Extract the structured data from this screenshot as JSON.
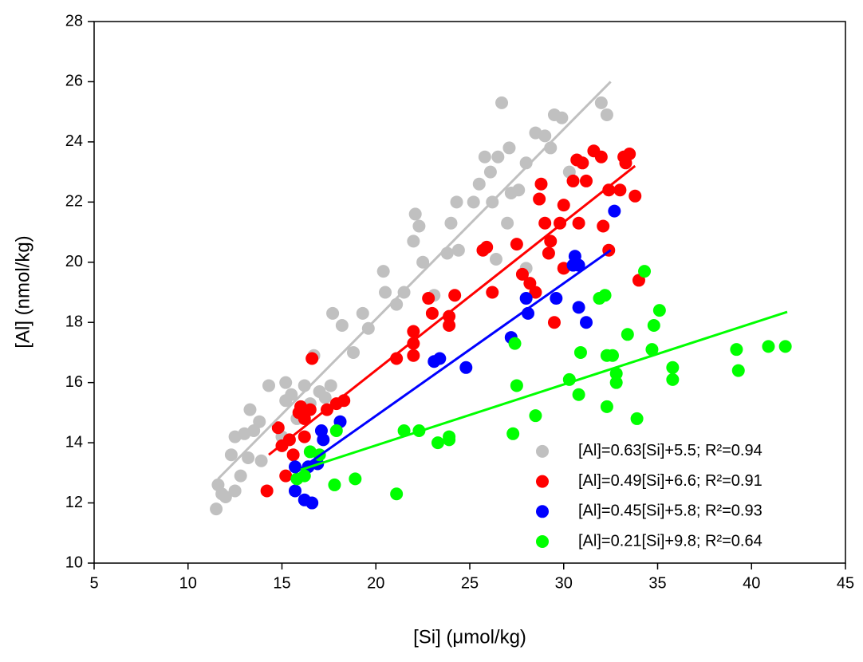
{
  "chart_data": {
    "type": "scatter",
    "xlabel": "[Si] (μmol/kg)",
    "ylabel": "[Al] (nmol/kg)",
    "xlim": [
      5,
      45
    ],
    "xticks": [
      5,
      10,
      15,
      20,
      25,
      30,
      35,
      40,
      45
    ],
    "ylim": [
      10,
      28
    ],
    "yticks": [
      10,
      12,
      14,
      16,
      18,
      20,
      22,
      24,
      26,
      28
    ],
    "grid": false,
    "legend": "lower right",
    "series": [
      {
        "name": "[Al]=0.63[Si]+5.5; R²=0.94",
        "color": "#c0c0c0",
        "x": [
          11.5,
          11.6,
          11.8,
          12.0,
          12.3,
          12.5,
          12.5,
          12.8,
          13.0,
          13.2,
          13.3,
          13.5,
          13.8,
          13.9,
          14.3,
          15.0,
          15.2,
          15.2,
          15.5,
          15.8,
          16.2,
          16.5,
          16.7,
          17.0,
          17.3,
          17.6,
          17.7,
          18.2,
          18.8,
          19.3,
          19.6,
          20.4,
          20.5,
          21.1,
          21.5,
          22.0,
          22.1,
          22.3,
          22.5,
          23.1,
          23.8,
          24.0,
          24.3,
          24.4,
          25.2,
          25.5,
          25.8,
          26.1,
          26.2,
          26.5,
          26.7,
          27.1,
          27.2,
          27.6,
          28.0,
          28.5,
          29.0,
          29.3,
          29.5,
          29.9,
          30.3,
          31.0,
          32.0,
          32.3,
          28.0,
          27.0,
          26.4
        ],
        "y": [
          11.8,
          12.6,
          12.3,
          12.2,
          13.6,
          14.2,
          12.4,
          12.9,
          14.3,
          13.5,
          15.1,
          14.4,
          14.7,
          13.4,
          15.9,
          14.2,
          15.4,
          16.0,
          15.6,
          14.8,
          15.9,
          15.3,
          16.9,
          15.7,
          15.5,
          15.9,
          18.3,
          17.9,
          17.0,
          18.3,
          17.8,
          19.7,
          19.0,
          18.6,
          19.0,
          20.7,
          21.6,
          21.2,
          20.0,
          18.9,
          20.3,
          21.3,
          22.0,
          20.4,
          22.0,
          22.6,
          23.5,
          23.0,
          22.0,
          23.5,
          25.3,
          23.8,
          22.3,
          22.4,
          23.3,
          24.3,
          24.2,
          23.8,
          24.9,
          24.8,
          23.0,
          23.3,
          25.3,
          24.9,
          19.8,
          21.3,
          20.1
        ],
        "fit": {
          "x": [
            11.6,
            32.5
          ],
          "y": [
            12.8,
            26.0
          ]
        }
      },
      {
        "name": "[Al]=0.49[Si]+6.6; R²=0.91",
        "color": "#ff0000",
        "x": [
          14.2,
          14.8,
          15.0,
          15.2,
          15.4,
          15.6,
          15.9,
          16.0,
          16.2,
          16.2,
          16.5,
          16.6,
          17.4,
          17.9,
          18.3,
          21.1,
          22.0,
          22.0,
          22.0,
          22.8,
          23.0,
          23.9,
          23.9,
          24.2,
          25.7,
          25.9,
          26.2,
          27.5,
          27.8,
          28.2,
          28.5,
          28.7,
          28.8,
          29.0,
          29.2,
          29.3,
          29.5,
          29.8,
          30.0,
          30.0,
          30.5,
          30.7,
          30.8,
          31.0,
          31.2,
          31.6,
          32.0,
          32.1,
          32.4,
          32.4,
          33.0,
          33.2,
          33.5,
          33.8,
          34.0,
          33.3
        ],
        "y": [
          12.4,
          14.5,
          13.9,
          12.9,
          14.1,
          13.6,
          15.0,
          15.2,
          14.2,
          14.8,
          15.1,
          16.8,
          15.1,
          15.3,
          15.4,
          16.8,
          16.9,
          17.3,
          17.7,
          18.8,
          18.3,
          17.9,
          18.2,
          18.9,
          20.4,
          20.5,
          19.0,
          20.6,
          19.6,
          19.3,
          19.0,
          22.1,
          22.6,
          21.3,
          20.3,
          20.7,
          18.0,
          21.3,
          21.9,
          19.8,
          22.7,
          23.4,
          21.3,
          23.3,
          22.7,
          23.7,
          23.5,
          21.2,
          22.4,
          20.4,
          22.4,
          23.5,
          23.6,
          22.2,
          19.4,
          23.3
        ],
        "fit": {
          "x": [
            14.3,
            33.8
          ],
          "y": [
            13.6,
            23.2
          ]
        }
      },
      {
        "name": "[Al]=0.45[Si]+5.8; R²=0.93",
        "color": "#0000ff",
        "x": [
          15.7,
          15.7,
          16.2,
          16.4,
          16.6,
          16.9,
          17.1,
          17.2,
          18.1,
          23.1,
          23.4,
          24.8,
          27.2,
          28.0,
          28.1,
          29.6,
          30.6,
          30.8,
          30.5,
          30.8,
          31.2,
          32.7
        ],
        "y": [
          13.2,
          12.4,
          12.1,
          13.2,
          12.0,
          13.3,
          14.4,
          14.1,
          14.7,
          16.7,
          16.8,
          16.5,
          17.5,
          18.8,
          18.3,
          18.8,
          20.2,
          19.9,
          19.9,
          18.5,
          18.0,
          21.7
        ],
        "fit": {
          "x": [
            15.7,
            32.5
          ],
          "y": [
            13.0,
            20.4
          ]
        }
      },
      {
        "name": "[Al]=0.21[Si]+9.8; R²=0.64",
        "color": "#00ff00",
        "x": [
          15.8,
          16.2,
          16.5,
          17.0,
          17.8,
          17.9,
          18.9,
          21.1,
          21.5,
          22.3,
          23.3,
          23.9,
          23.9,
          27.3,
          27.4,
          27.5,
          28.5,
          30.3,
          30.8,
          30.9,
          32.2,
          31.9,
          32.3,
          32.3,
          32.6,
          32.8,
          32.8,
          33.4,
          33.9,
          34.3,
          34.7,
          34.8,
          35.1,
          35.8,
          35.8,
          39.2,
          39.3,
          40.9,
          41.8
        ],
        "y": [
          12.8,
          12.9,
          13.7,
          13.6,
          12.6,
          14.4,
          12.8,
          12.3,
          14.4,
          14.4,
          14.0,
          14.2,
          14.1,
          14.3,
          17.3,
          15.9,
          14.9,
          16.1,
          15.6,
          17.0,
          18.9,
          18.8,
          15.2,
          16.9,
          16.9,
          16.3,
          16.0,
          17.6,
          14.8,
          19.7,
          17.1,
          17.9,
          18.4,
          16.5,
          16.1,
          17.1,
          16.4,
          17.2,
          17.2
        ],
        "fit": {
          "x": [
            16.0,
            41.9
          ],
          "y": [
            13.1,
            18.35
          ]
        }
      }
    ]
  }
}
